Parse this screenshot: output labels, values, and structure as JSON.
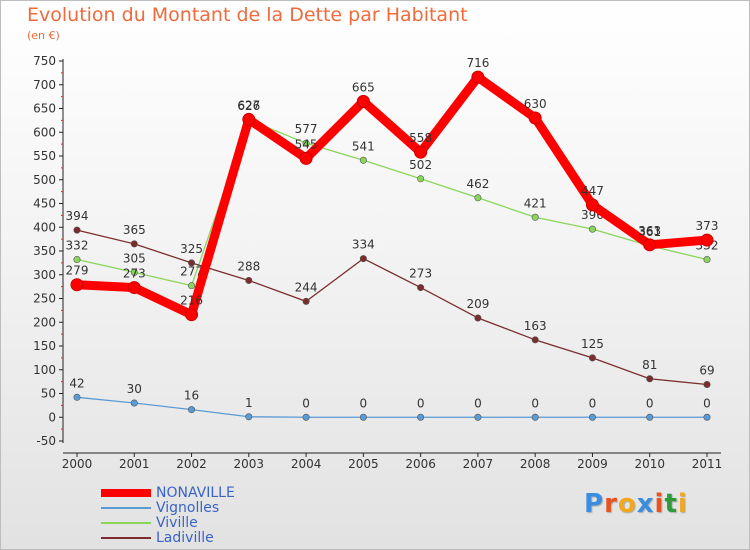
{
  "header": {
    "title": "Evolution du Montant de la Dette par Habitant",
    "subtitle": "(en €)"
  },
  "logo": {
    "letters": [
      "P",
      "r",
      "o",
      "x",
      "i",
      "t",
      "i"
    ],
    "colors": [
      "#3a8ee0",
      "#e8531f",
      "#f2a81d",
      "#3a8ee0",
      "#e8531f",
      "#2e9a3a",
      "#f2a81d"
    ]
  },
  "chart_data": {
    "type": "line",
    "title": "Evolution du Montant de la Dette par Habitant",
    "ylabel": "(en €)",
    "xlabel": "",
    "x": [
      "2000",
      "2001",
      "2002",
      "2003",
      "2004",
      "2005",
      "2006",
      "2007",
      "2008",
      "2009",
      "2010",
      "2011"
    ],
    "ylim": [
      -50,
      750
    ],
    "yticks": [
      -50,
      0,
      50,
      100,
      150,
      200,
      250,
      300,
      350,
      400,
      450,
      500,
      550,
      600,
      650,
      700,
      750
    ],
    "grid": false,
    "legend": "bottom-left",
    "series": [
      {
        "name": "NONAVILLE",
        "color": "#ff0000",
        "values": [
          279,
          273,
          216,
          627,
          545,
          665,
          558,
          716,
          630,
          447,
          363,
          373
        ]
      },
      {
        "name": "Vignolles",
        "color": "#5a9bd5",
        "values": [
          42,
          30,
          16,
          1,
          0,
          0,
          0,
          0,
          0,
          0,
          0,
          0
        ]
      },
      {
        "name": "Viville",
        "color": "#8ad65a",
        "values": [
          332,
          305,
          277,
          626,
          577,
          541,
          502,
          462,
          421,
          396,
          361,
          332
        ]
      },
      {
        "name": "Ladiville",
        "color": "#7b2c2c",
        "values": [
          394,
          365,
          325,
          288,
          244,
          334,
          273,
          209,
          163,
          125,
          81,
          69
        ]
      }
    ]
  }
}
